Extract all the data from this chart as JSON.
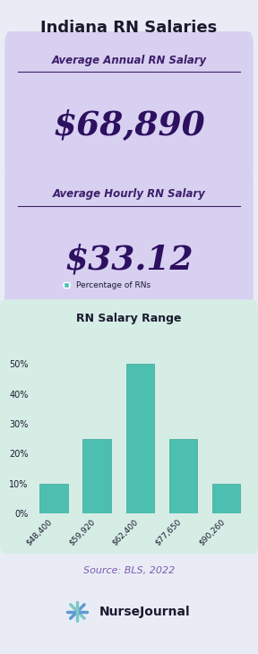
{
  "title": "Indiana RN Salaries",
  "title_color": "#1a1a2e",
  "bg_color": "#eaecf5",
  "box1_bg": "#d8d0f0",
  "box2_bg": "#d8d0f0",
  "chart_bg": "#d6ede6",
  "annual_label": "Average Annual RN Salary",
  "annual_value": "$68,890",
  "hourly_label": "Average Hourly RN Salary",
  "hourly_value": "$33.12",
  "label_color": "#3d1f6b",
  "value_color": "#2d1060",
  "chart_title": "RN Salary Range",
  "legend_label": "Percentage of RNs",
  "legend_color": "#4dbfb0",
  "bar_categories": [
    "$48,400",
    "$59,920",
    "$62,400",
    "$77,650",
    "$90,260"
  ],
  "bar_values": [
    10,
    25,
    50,
    25,
    10
  ],
  "bar_color": "#4dbfb0",
  "bar_edge_color": "#3aa898",
  "ytick_labels": [
    "0%",
    "10%",
    "20%",
    "30%",
    "40%",
    "50%"
  ],
  "ytick_values": [
    0,
    10,
    20,
    30,
    40,
    50
  ],
  "source_text": "Source: BLS, 2022",
  "source_color": "#7a5cb0",
  "chart_title_color": "#1a1a2e",
  "axis_label_color": "#1a1a2e",
  "footer_logo_text": "NurseJournal",
  "footer_logo_color": "#1a1a2e",
  "underline_color": "#3d1f6b",
  "icon_color1": "#5b9bd5",
  "icon_color2": "#7ec8c8"
}
